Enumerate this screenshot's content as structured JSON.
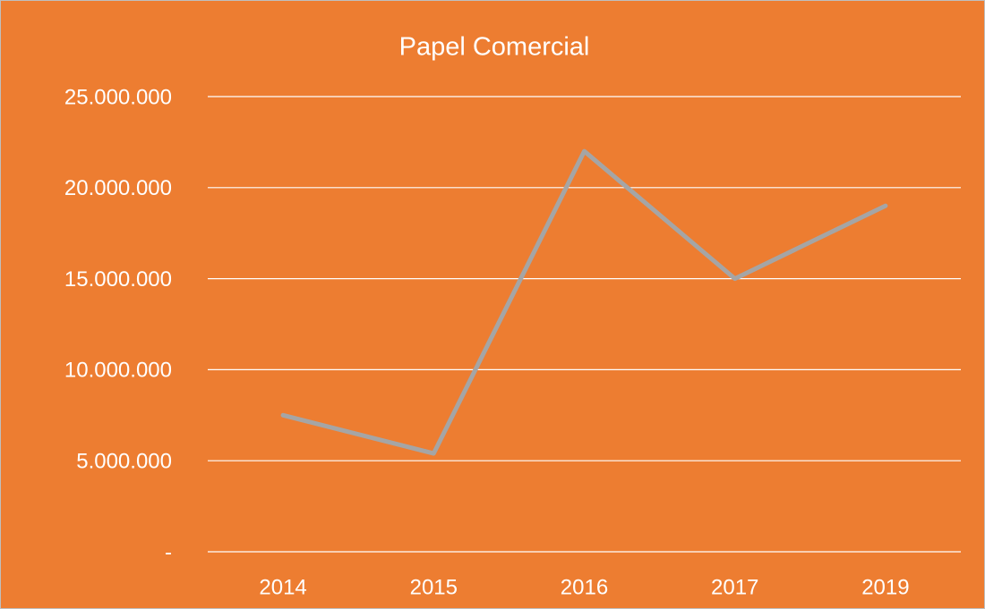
{
  "chart_data": {
    "type": "line",
    "title": "Papel Comercial",
    "categories": [
      "2014",
      "2015",
      "2016",
      "2017",
      "2019"
    ],
    "series": [
      {
        "color": "#a5a5a5",
        "values": [
          7500000,
          5400000,
          22000000,
          15000000,
          19000000
        ]
      }
    ],
    "ylim": [
      0,
      25000000
    ],
    "yticks": [
      {
        "value": 0,
        "label": "-"
      },
      {
        "value": 5000000,
        "label": "5.000.000"
      },
      {
        "value": 10000000,
        "label": "10.000.000"
      },
      {
        "value": 15000000,
        "label": "15.000.000"
      },
      {
        "value": 20000000,
        "label": "20.000.000"
      },
      {
        "value": 25000000,
        "label": "25.000.000"
      }
    ],
    "grid": true,
    "background": "#ed7d31"
  }
}
